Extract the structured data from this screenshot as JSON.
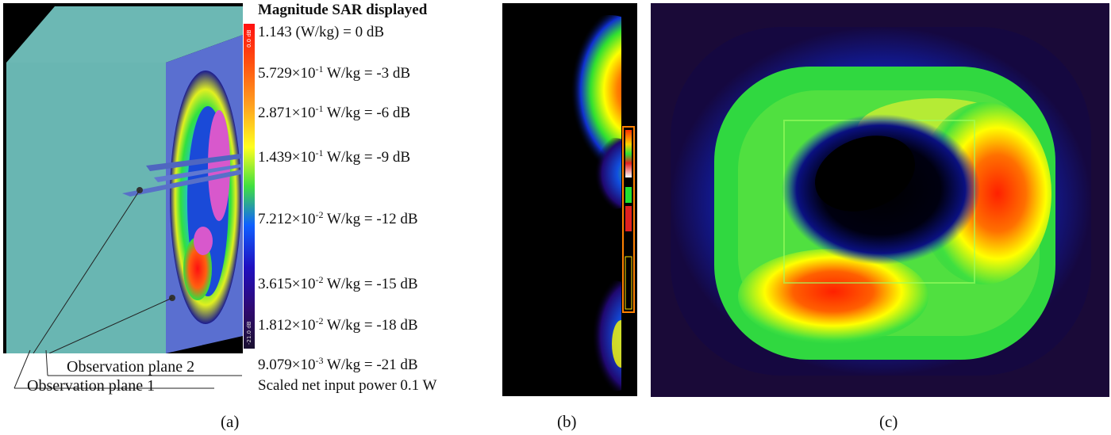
{
  "panel_a": {
    "obs_plane_2": "Observation plane 2",
    "obs_plane_1": "Observation plane 1",
    "colorbar_top_text": "0.0 dB",
    "colorbar_bottom_text": "-21.0 dB"
  },
  "legend": {
    "title": "Magnitude SAR displayed",
    "entries": [
      {
        "mantissa": "1.143",
        "unit": "(W/kg) = 0 dB"
      },
      {
        "mantissa": "5.729×10",
        "exp": "-1",
        "unit": "W/kg = -3 dB"
      },
      {
        "mantissa": "2.871×10",
        "exp": "-1",
        "unit": "W/kg = -6 dB"
      },
      {
        "mantissa": "1.439×10",
        "exp": "-1",
        "unit": "W/kg = -9 dB"
      },
      {
        "mantissa": "7.212×10",
        "exp": "-2",
        "unit": "W/kg = -12 dB"
      },
      {
        "mantissa": "3.615×10",
        "exp": "-2",
        "unit": "W/kg = -15 dB"
      },
      {
        "mantissa": "1.812×10",
        "exp": "-2",
        "unit": "W/kg = -18 dB"
      },
      {
        "mantissa": "9.079×10",
        "exp": "-3",
        "unit": "W/kg = -21 dB"
      }
    ],
    "note": "Scaled net input power 0.1 W"
  },
  "captions": {
    "a": "(a)",
    "b": "(b)",
    "c": "(c)"
  },
  "colors": {
    "phantom": "#6dbbb6",
    "background_dark": "#000000",
    "max_red": "#ff2000",
    "mid_yellow": "#ffff00",
    "mid_green": "#22dd33",
    "low_blue": "#0a1fd0",
    "min_purple": "#2a0a50",
    "peak_magenta": "#dd55cc"
  }
}
